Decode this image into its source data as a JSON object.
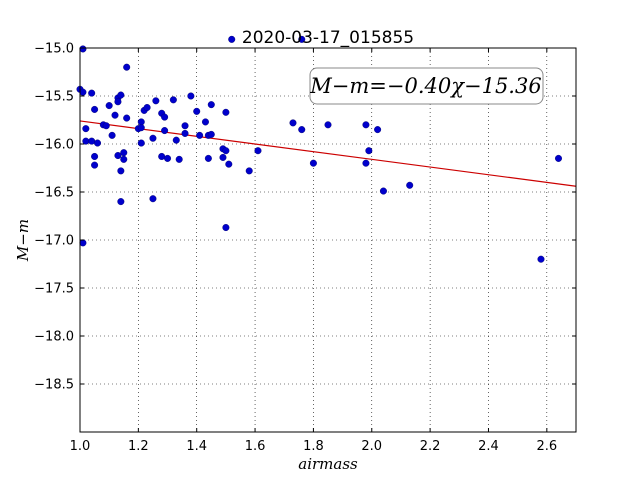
{
  "chart_data": {
    "type": "scatter",
    "title": "2020-03-17_015855",
    "xlabel": "airmass",
    "ylabel": "M−m",
    "xlim": [
      1.0,
      2.7
    ],
    "ylim": [
      -15.0,
      -19.0
    ],
    "y_axis_inverted": true,
    "grid": true,
    "grid_style": "dotted",
    "x_ticks": [
      1.0,
      1.2,
      1.4,
      1.6,
      1.8,
      2.0,
      2.2,
      2.4,
      2.6
    ],
    "x_tick_labels": [
      "1.0",
      "1.2",
      "1.4",
      "1.6",
      "1.8",
      "2.0",
      "2.2",
      "2.4",
      "2.6"
    ],
    "y_ticks": [
      -15.0,
      -15.5,
      -16.0,
      -16.5,
      -17.0,
      -17.5,
      -18.0,
      -18.5
    ],
    "y_tick_labels": [
      "−15.0",
      "−15.5",
      "−16.0",
      "−16.5",
      "−17.0",
      "−17.5",
      "−18.0",
      "−18.5"
    ],
    "annotation": "M−m=−0.40χ−15.36",
    "fit": {
      "slope": -0.4,
      "intercept": -15.36,
      "color": "#cc0000"
    },
    "point_color": "#0000cc",
    "points": [
      [
        1.0,
        -15.43
      ],
      [
        1.01,
        -15.46
      ],
      [
        1.01,
        -17.03
      ],
      [
        1.01,
        -15.01
      ],
      [
        1.02,
        -15.84
      ],
      [
        1.02,
        -15.97
      ],
      [
        1.04,
        -15.47
      ],
      [
        1.04,
        -15.97
      ],
      [
        1.05,
        -15.64
      ],
      [
        1.05,
        -16.13
      ],
      [
        1.05,
        -16.22
      ],
      [
        1.06,
        -15.99
      ],
      [
        1.08,
        -15.8
      ],
      [
        1.09,
        -15.81
      ],
      [
        1.1,
        -15.6
      ],
      [
        1.11,
        -15.91
      ],
      [
        1.12,
        -15.7
      ],
      [
        1.13,
        -15.52
      ],
      [
        1.13,
        -15.56
      ],
      [
        1.13,
        -16.12
      ],
      [
        1.14,
        -15.49
      ],
      [
        1.14,
        -16.6
      ],
      [
        1.14,
        -16.28
      ],
      [
        1.15,
        -16.09
      ],
      [
        1.15,
        -16.16
      ],
      [
        1.16,
        -15.2
      ],
      [
        1.16,
        -15.73
      ],
      [
        1.2,
        -15.84
      ],
      [
        1.21,
        -15.77
      ],
      [
        1.21,
        -15.83
      ],
      [
        1.21,
        -15.99
      ],
      [
        1.22,
        -15.65
      ],
      [
        1.23,
        -15.62
      ],
      [
        1.25,
        -15.94
      ],
      [
        1.25,
        -16.57
      ],
      [
        1.26,
        -15.55
      ],
      [
        1.28,
        -15.68
      ],
      [
        1.28,
        -16.13
      ],
      [
        1.29,
        -15.72
      ],
      [
        1.29,
        -15.86
      ],
      [
        1.3,
        -16.15
      ],
      [
        1.32,
        -15.54
      ],
      [
        1.33,
        -15.96
      ],
      [
        1.34,
        -16.16
      ],
      [
        1.36,
        -15.81
      ],
      [
        1.36,
        -15.89
      ],
      [
        1.38,
        -15.5
      ],
      [
        1.4,
        -15.66
      ],
      [
        1.41,
        -15.91
      ],
      [
        1.43,
        -15.77
      ],
      [
        1.44,
        -15.91
      ],
      [
        1.44,
        -16.15
      ],
      [
        1.45,
        -15.9
      ],
      [
        1.45,
        -15.59
      ],
      [
        1.49,
        -16.05
      ],
      [
        1.49,
        -16.14
      ],
      [
        1.5,
        -15.67
      ],
      [
        1.5,
        -16.07
      ],
      [
        1.5,
        -16.87
      ],
      [
        1.51,
        -16.21
      ],
      [
        1.52,
        -14.91
      ],
      [
        1.58,
        -16.28
      ],
      [
        1.61,
        -16.07
      ],
      [
        1.73,
        -15.78
      ],
      [
        1.76,
        -14.91
      ],
      [
        1.76,
        -15.85
      ],
      [
        1.8,
        -16.2
      ],
      [
        1.85,
        -15.8
      ],
      [
        1.98,
        -15.8
      ],
      [
        1.98,
        -16.2
      ],
      [
        1.99,
        -16.07
      ],
      [
        2.02,
        -15.85
      ],
      [
        2.04,
        -16.49
      ],
      [
        2.13,
        -16.43
      ],
      [
        2.58,
        -17.2
      ],
      [
        2.64,
        -16.15
      ]
    ]
  }
}
